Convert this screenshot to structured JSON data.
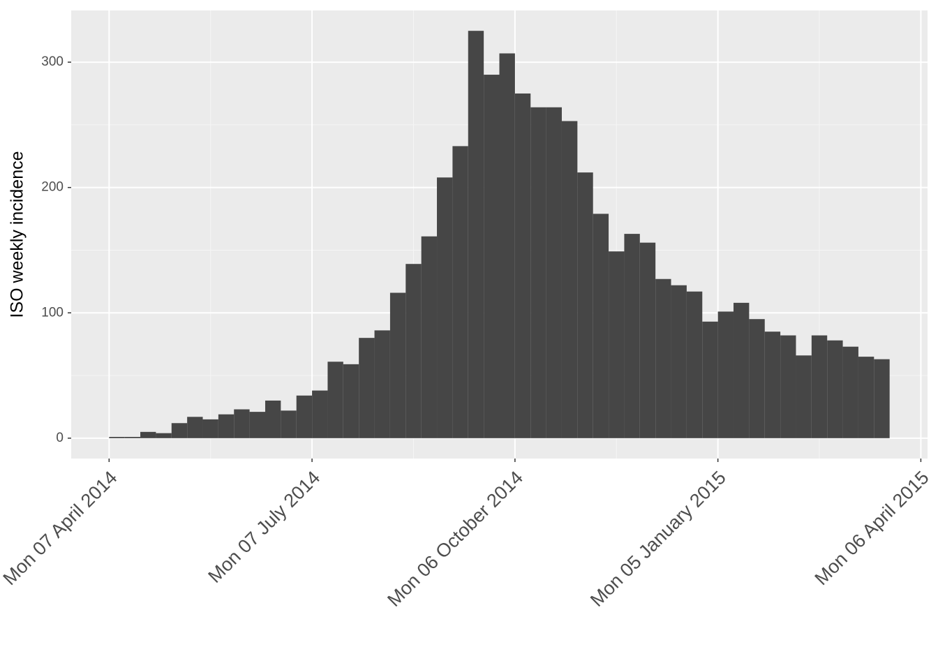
{
  "chart_data": {
    "type": "histogram",
    "y_label": "ISO weekly incidence",
    "bins": [
      "2014-04-07",
      "2014-04-14",
      "2014-04-21",
      "2014-04-28",
      "2014-05-05",
      "2014-05-12",
      "2014-05-19",
      "2014-05-26",
      "2014-06-02",
      "2014-06-09",
      "2014-06-16",
      "2014-06-23",
      "2014-06-30",
      "2014-07-07",
      "2014-07-14",
      "2014-07-21",
      "2014-07-28",
      "2014-08-04",
      "2014-08-11",
      "2014-08-18",
      "2014-08-25",
      "2014-09-01",
      "2014-09-08",
      "2014-09-15",
      "2014-09-22",
      "2014-09-29",
      "2014-10-06",
      "2014-10-13",
      "2014-10-20",
      "2014-10-27",
      "2014-11-03",
      "2014-11-10",
      "2014-11-17",
      "2014-11-24",
      "2014-12-01",
      "2014-12-08",
      "2014-12-15",
      "2014-12-22",
      "2014-12-29",
      "2015-01-05",
      "2015-01-12",
      "2015-01-19",
      "2015-01-26",
      "2015-02-02",
      "2015-02-09",
      "2015-02-16",
      "2015-02-23",
      "2015-03-02",
      "2015-03-09",
      "2015-03-16",
      "2015-03-23"
    ],
    "values": [
      1,
      1,
      5,
      4,
      12,
      17,
      15,
      19,
      23,
      21,
      30,
      22,
      34,
      38,
      61,
      59,
      80,
      86,
      116,
      139,
      161,
      208,
      233,
      325,
      290,
      307,
      275,
      264,
      264,
      253,
      212,
      179,
      149,
      163,
      156,
      127,
      122,
      117,
      93,
      101,
      108,
      95,
      85,
      82,
      66,
      82,
      78,
      73,
      65,
      63
    ],
    "color": "#464646",
    "xlim": [
      "2014-03-21",
      "2015-04-09"
    ],
    "xticks": [
      {
        "value": "2014-04-07",
        "label": "Mon 07 April 2014"
      },
      {
        "value": "2014-07-07",
        "label": "Mon 07 July 2014"
      },
      {
        "value": "2014-10-06",
        "label": "Mon 06 October 2014"
      },
      {
        "value": "2015-01-05",
        "label": "Mon 05 January 2015"
      },
      {
        "value": "2015-04-06",
        "label": "Mon 06 April 2015"
      }
    ],
    "ylim": [
      -16.25,
      341.25
    ],
    "yticks": [
      0,
      100,
      200,
      300
    ],
    "grid": true
  }
}
